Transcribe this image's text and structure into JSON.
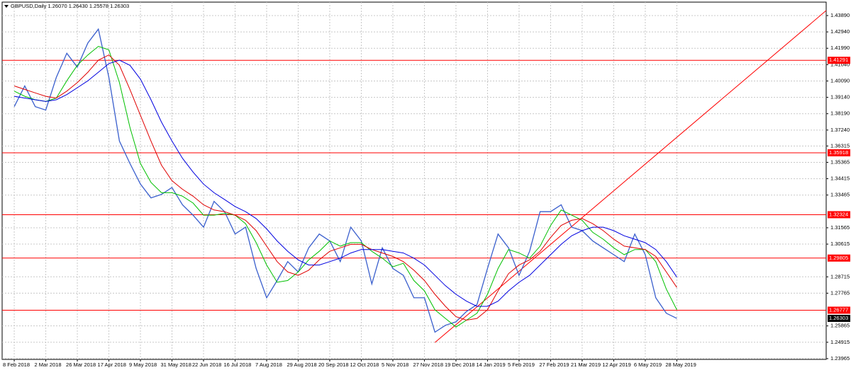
{
  "chart_data": {
    "type": "line",
    "title": "GBPUSD,Daily  1.26070 1.26430 1.25578 1.26303",
    "categories": [
      "8 Feb 2018",
      null,
      null,
      "2 Mar 2018",
      null,
      null,
      "26 Mar 2018",
      null,
      null,
      "17 Apr 2018",
      null,
      null,
      "9 May 2018",
      null,
      null,
      "31 May 2018",
      null,
      null,
      "22 Jun 2018",
      null,
      null,
      "16 Jul 2018",
      null,
      null,
      "7 Aug 2018",
      null,
      null,
      "29 Aug 2018",
      null,
      null,
      "20 Sep 2018",
      null,
      null,
      "12 Oct 2018",
      null,
      null,
      "5 Nov 2018",
      null,
      null,
      "27 Nov 2018",
      null,
      null,
      "19 Dec 2018",
      null,
      null,
      "14 Jan 2019",
      null,
      null,
      "5 Feb 2019",
      null,
      null,
      "27 Feb 2019",
      null,
      null,
      "21 Mar 2019",
      null,
      null,
      "12 Apr 2019",
      null,
      null,
      "6 May 2019",
      null,
      null,
      "28 May 2019"
    ],
    "series": [
      {
        "name": "GBPUSD",
        "color": "#3a5fcd",
        "values": [
          1.386,
          1.398,
          1.386,
          1.384,
          1.403,
          1.417,
          1.409,
          1.423,
          1.431,
          1.403,
          1.366,
          1.353,
          1.341,
          1.333,
          1.335,
          1.339,
          1.329,
          1.323,
          1.316,
          1.331,
          1.325,
          1.312,
          1.316,
          1.292,
          1.275,
          1.285,
          1.296,
          1.29,
          1.304,
          1.312,
          1.308,
          1.296,
          1.316,
          1.308,
          1.283,
          1.304,
          1.292,
          1.288,
          1.275,
          1.275,
          1.255,
          1.259,
          1.261,
          1.267,
          1.271,
          1.292,
          1.312,
          1.304,
          1.288,
          1.302,
          1.325,
          1.325,
          1.329,
          1.316,
          1.314,
          1.308,
          1.304,
          1.3,
          1.296,
          1.312,
          1.3,
          1.275,
          1.266,
          1.263
        ]
      },
      {
        "color": "#00c000",
        "values": [
          1.395,
          1.392,
          1.39,
          1.389,
          1.391,
          1.401,
          1.41,
          1.416,
          1.421,
          1.419,
          1.4,
          1.374,
          1.353,
          1.342,
          1.336,
          1.336,
          1.334,
          1.33,
          1.323,
          1.323,
          1.324,
          1.323,
          1.318,
          1.307,
          1.294,
          1.284,
          1.285,
          1.29,
          1.297,
          1.302,
          1.308,
          1.305,
          1.307,
          1.307,
          1.302,
          1.298,
          1.293,
          1.295,
          1.285,
          1.279,
          1.268,
          1.263,
          1.258,
          1.262,
          1.266,
          1.277,
          1.292,
          1.303,
          1.301,
          1.298,
          1.305,
          1.317,
          1.326,
          1.323,
          1.32,
          1.313,
          1.309,
          1.304,
          1.3,
          1.303,
          1.303,
          1.296,
          1.28,
          1.268
        ]
      },
      {
        "color": "#e00000",
        "values": [
          1.398,
          1.396,
          1.394,
          1.392,
          1.391,
          1.395,
          1.4,
          1.406,
          1.413,
          1.416,
          1.41,
          1.396,
          1.381,
          1.366,
          1.352,
          1.343,
          1.338,
          1.334,
          1.329,
          1.326,
          1.325,
          1.323,
          1.32,
          1.314,
          1.305,
          1.296,
          1.29,
          1.288,
          1.291,
          1.297,
          1.302,
          1.304,
          1.306,
          1.306,
          1.303,
          1.301,
          1.299,
          1.296,
          1.291,
          1.285,
          1.277,
          1.27,
          1.264,
          1.262,
          1.263,
          1.268,
          1.279,
          1.289,
          1.294,
          1.297,
          1.302,
          1.31,
          1.317,
          1.32,
          1.321,
          1.318,
          1.314,
          1.309,
          1.305,
          1.304,
          1.303,
          1.299,
          1.29,
          1.281
        ]
      },
      {
        "color": "#0000e0",
        "values": [
          1.392,
          1.391,
          1.39,
          1.389,
          1.39,
          1.393,
          1.397,
          1.401,
          1.406,
          1.411,
          1.413,
          1.41,
          1.402,
          1.39,
          1.377,
          1.366,
          1.356,
          1.348,
          1.341,
          1.336,
          1.332,
          1.328,
          1.325,
          1.321,
          1.315,
          1.308,
          1.302,
          1.297,
          1.294,
          1.294,
          1.296,
          1.298,
          1.301,
          1.303,
          1.303,
          1.303,
          1.302,
          1.301,
          1.298,
          1.294,
          1.288,
          1.282,
          1.277,
          1.273,
          1.27,
          1.27,
          1.273,
          1.279,
          1.284,
          1.288,
          1.294,
          1.3,
          1.306,
          1.311,
          1.314,
          1.316,
          1.316,
          1.314,
          1.311,
          1.309,
          1.307,
          1.303,
          1.296,
          1.287
        ]
      }
    ],
    "xlim": [
      -1.15,
      77.2
    ],
    "ylim": [
      1.2392,
      1.4467
    ],
    "yticks": [
      {
        "value": 1.4389,
        "label": "1.43890"
      },
      {
        "value": 1.4294,
        "label": "1.42940"
      },
      {
        "value": 1.4199,
        "label": "1.41990"
      },
      {
        "value": 1.4104,
        "label": "1.41040"
      },
      {
        "value": 1.4009,
        "label": "1.40090"
      },
      {
        "value": 1.3914,
        "label": "1.39140"
      },
      {
        "value": 1.3819,
        "label": "1.38190"
      },
      {
        "value": 1.3724,
        "label": "1.37240"
      },
      1.36315,
      1.35365,
      1.34415,
      1.33465,
      1.31565,
      1.30615,
      1.28715,
      1.27765,
      1.25865,
      1.24915,
      1.23965
    ],
    "levels": [
      1.41291,
      1.35918,
      1.32324,
      1.29805,
      1.26777
    ],
    "level_color": "#ff0000",
    "current_price": 1.26303,
    "trend_line": {
      "x": [
        40,
        77.2
      ],
      "y": [
        1.249,
        1.4418
      ],
      "color": "#ff0000"
    },
    "grid": true
  }
}
